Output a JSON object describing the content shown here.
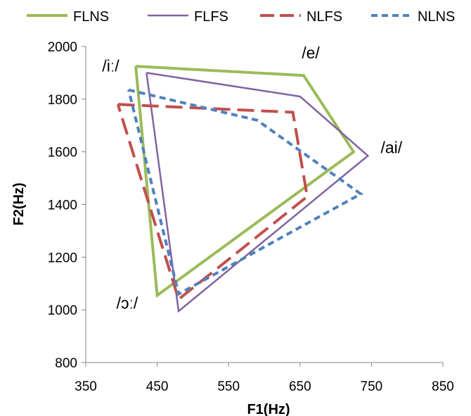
{
  "chart_data": {
    "type": "line",
    "title": "",
    "xlabel": "F1(Hz)",
    "ylabel": "F2(Hz)",
    "xlim": [
      350,
      850
    ],
    "ylim": [
      800,
      2000
    ],
    "xticks": [
      350,
      450,
      550,
      650,
      750,
      850
    ],
    "yticks": [
      800,
      1000,
      1200,
      1400,
      1600,
      1800,
      2000
    ],
    "grid": false,
    "legend_position": "top",
    "annotations": [
      {
        "text": "/iː/",
        "x": 385,
        "y": 1905
      },
      {
        "text": "/e/",
        "x": 665,
        "y": 1955
      },
      {
        "text": "/ai/",
        "x": 778,
        "y": 1595
      },
      {
        "text": "/ɔː/",
        "x": 408,
        "y": 1005
      }
    ],
    "series": [
      {
        "name": "FLNS",
        "color": "#9bbb59",
        "dash": "solid",
        "points": [
          [
            420,
            1925
          ],
          [
            655,
            1890
          ],
          [
            725,
            1600
          ],
          [
            450,
            1055
          ],
          [
            420,
            1925
          ]
        ]
      },
      {
        "name": "FLFS",
        "color": "#8064a2",
        "dash": "solid",
        "points": [
          [
            435,
            1900
          ],
          [
            650,
            1810
          ],
          [
            745,
            1585
          ],
          [
            480,
            995
          ],
          [
            435,
            1900
          ]
        ]
      },
      {
        "name": "NLFS",
        "color": "#c0504d",
        "dash": "long-dash",
        "points": [
          [
            395,
            1780
          ],
          [
            640,
            1750
          ],
          [
            660,
            1430
          ],
          [
            480,
            1040
          ],
          [
            395,
            1780
          ]
        ]
      },
      {
        "name": "NLNS",
        "color": "#4f81bd",
        "dash": "short-dash",
        "points": [
          [
            410,
            1835
          ],
          [
            590,
            1720
          ],
          [
            735,
            1440
          ],
          [
            480,
            1060
          ],
          [
            410,
            1835
          ]
        ]
      }
    ]
  }
}
